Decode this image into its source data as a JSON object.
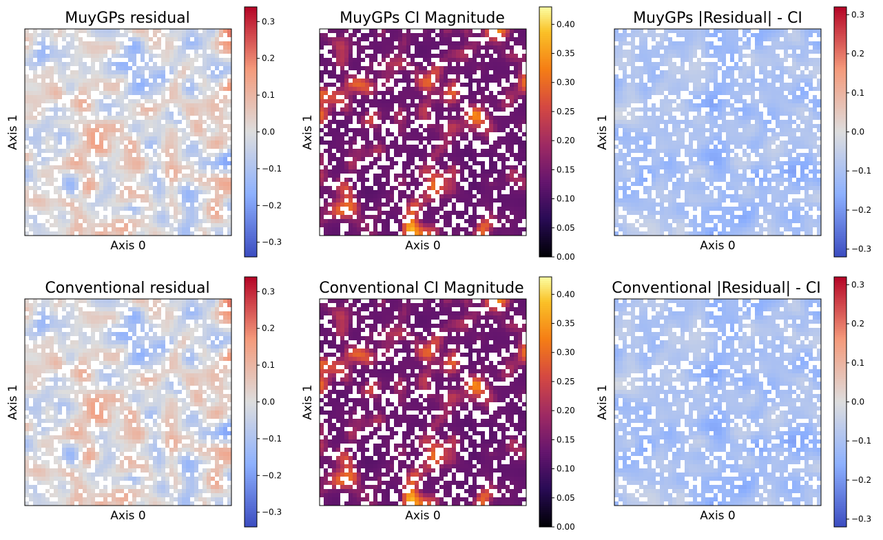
{
  "figure": {
    "background": "#ffffff"
  },
  "chart_data": [
    {
      "type": "heatmap",
      "title": "MuyGPs residual",
      "xlabel": "Axis 0",
      "ylabel": "Axis 1",
      "colormap": "coolwarm",
      "colorbar_range": [
        -0.34,
        0.34
      ],
      "colorbar_ticks": [
        -0.3,
        -0.2,
        -0.1,
        0.0,
        0.1,
        0.2,
        0.3
      ],
      "colorbar_tick_labels": [
        "−0.3",
        "−0.2",
        "−0.1",
        "0.0",
        "0.1",
        "0.2",
        "0.3"
      ],
      "grid_size": [
        50,
        50
      ],
      "missing_value_color": "#ffffff",
      "field_seed": 11,
      "field_variant": "residual",
      "mask_seed": 3
    },
    {
      "type": "heatmap",
      "title": "MuyGPs CI Magnitude",
      "xlabel": "Axis 0",
      "ylabel": "Axis 1",
      "colormap": "inferno",
      "colorbar_range": [
        0.0,
        0.43
      ],
      "colorbar_ticks": [
        0.0,
        0.05,
        0.1,
        0.15,
        0.2,
        0.25,
        0.3,
        0.35,
        0.4
      ],
      "colorbar_tick_labels": [
        "0.00",
        "0.05",
        "0.10",
        "0.15",
        "0.20",
        "0.25",
        "0.30",
        "0.35",
        "0.40"
      ],
      "grid_size": [
        50,
        50
      ],
      "missing_value_color": "#ffffff",
      "field_seed": 23,
      "field_variant": "ci",
      "mask_seed": 7
    },
    {
      "type": "heatmap",
      "title": "MuyGPs |Residual| - CI",
      "xlabel": "Axis 0",
      "ylabel": "Axis 1",
      "colormap": "coolwarm",
      "colorbar_range": [
        -0.32,
        0.32
      ],
      "colorbar_ticks": [
        -0.3,
        -0.2,
        -0.1,
        0.0,
        0.1,
        0.2,
        0.3
      ],
      "colorbar_tick_labels": [
        "−0.3",
        "−0.2",
        "−0.1",
        "0.0",
        "0.1",
        "0.2",
        "0.3"
      ],
      "grid_size": [
        50,
        50
      ],
      "missing_value_color": "#ffffff",
      "field_seed": 37,
      "field_variant": "diff",
      "mask_seed": 3
    },
    {
      "type": "heatmap",
      "title": "Conventional residual",
      "xlabel": "Axis 0",
      "ylabel": "Axis 1",
      "colormap": "coolwarm",
      "colorbar_range": [
        -0.34,
        0.34
      ],
      "colorbar_ticks": [
        -0.3,
        -0.2,
        -0.1,
        0.0,
        0.1,
        0.2,
        0.3
      ],
      "colorbar_tick_labels": [
        "−0.3",
        "−0.2",
        "−0.1",
        "0.0",
        "0.1",
        "0.2",
        "0.3"
      ],
      "grid_size": [
        50,
        50
      ],
      "missing_value_color": "#ffffff",
      "field_seed": 11,
      "field_variant": "residual",
      "mask_seed": 3
    },
    {
      "type": "heatmap",
      "title": "Conventional CI Magnitude",
      "xlabel": "Axis 0",
      "ylabel": "Axis 1",
      "colormap": "inferno",
      "colorbar_range": [
        0.0,
        0.43
      ],
      "colorbar_ticks": [
        0.0,
        0.05,
        0.1,
        0.15,
        0.2,
        0.25,
        0.3,
        0.35,
        0.4
      ],
      "colorbar_tick_labels": [
        "0.00",
        "0.05",
        "0.10",
        "0.15",
        "0.20",
        "0.25",
        "0.30",
        "0.35",
        "0.40"
      ],
      "grid_size": [
        50,
        50
      ],
      "missing_value_color": "#ffffff",
      "field_seed": 23,
      "field_variant": "ci",
      "mask_seed": 7
    },
    {
      "type": "heatmap",
      "title": "Conventional |Residual| - CI",
      "xlabel": "Axis 0",
      "ylabel": "Axis 1",
      "colormap": "coolwarm",
      "colorbar_range": [
        -0.32,
        0.32
      ],
      "colorbar_ticks": [
        -0.3,
        -0.2,
        -0.1,
        0.0,
        0.1,
        0.2,
        0.3
      ],
      "colorbar_tick_labels": [
        "−0.3",
        "−0.2",
        "−0.1",
        "0.0",
        "0.1",
        "0.2",
        "0.3"
      ],
      "grid_size": [
        50,
        50
      ],
      "missing_value_color": "#ffffff",
      "field_seed": 37,
      "field_variant": "diff",
      "mask_seed": 3
    }
  ]
}
